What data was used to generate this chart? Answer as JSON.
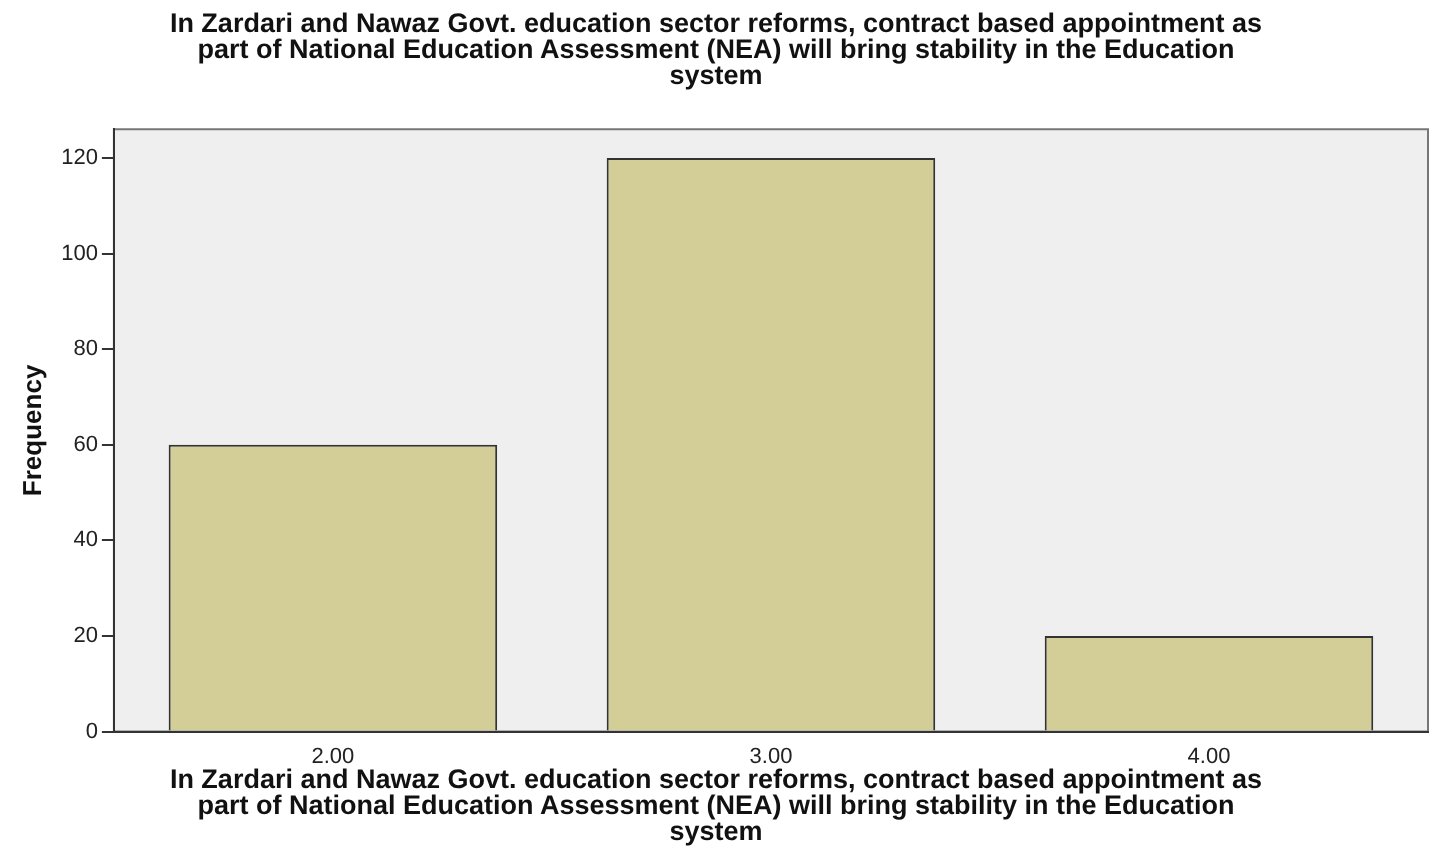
{
  "chart_data": {
    "type": "bar",
    "title": "In Zardari and Nawaz Govt. education sector reforms, contract based appointment as part of National Education Assessment (NEA) will bring stability in the Education system",
    "xlabel": "In Zardari and Nawaz Govt. education sector reforms, contract based appointment as part of National Education Assessment (NEA) will bring stability in the Education system",
    "ylabel": "Frequency",
    "categories": [
      "2.00",
      "3.00",
      "4.00"
    ],
    "values": [
      60,
      120,
      20
    ],
    "color": "#d3ce97",
    "ylim": [
      0,
      126
    ],
    "yticks": [
      0,
      20,
      40,
      60,
      80,
      100,
      120
    ],
    "grid": false,
    "legend": false
  }
}
